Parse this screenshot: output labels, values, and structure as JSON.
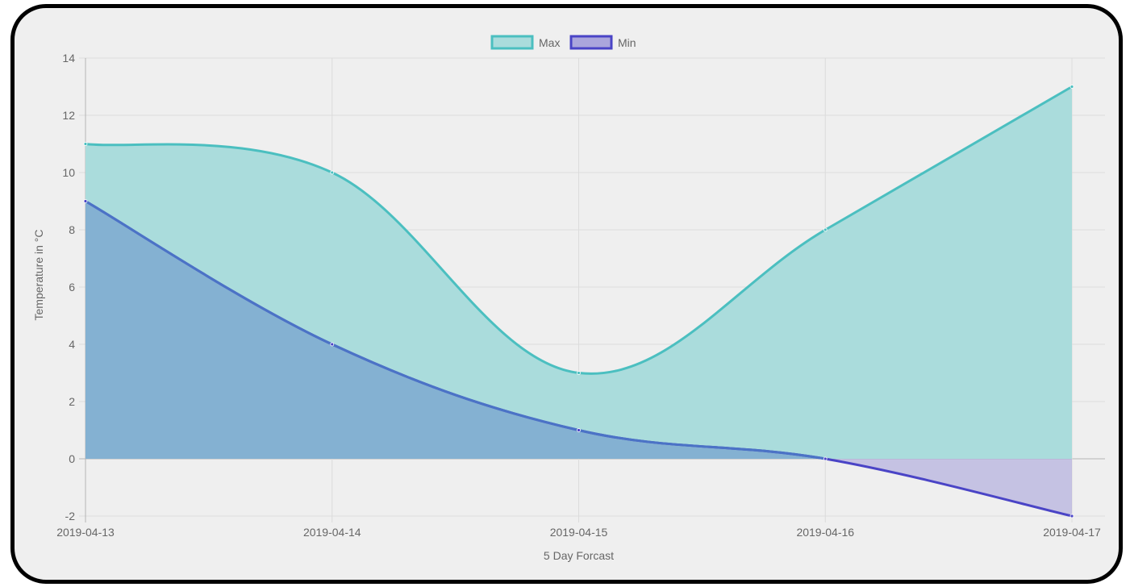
{
  "chart_data": {
    "type": "area",
    "categories": [
      "2019-04-13",
      "2019-04-14",
      "2019-04-15",
      "2019-04-16",
      "2019-04-17"
    ],
    "series": [
      {
        "name": "Max",
        "values": [
          11,
          10,
          3,
          8,
          13
        ],
        "border_color": "#4bbfc0",
        "fill_color": "#aadcdc"
      },
      {
        "name": "Min",
        "values": [
          9,
          4,
          1,
          0,
          -2
        ],
        "border_color": "#4a44c6",
        "fill_color": "#aba6dc",
        "overlap_fill_color": "#84b1d2",
        "overlap_border_color": "#4b73c6"
      }
    ],
    "xlabel": "5 Day Forcast",
    "ylabel": "Temperature in °C",
    "ylim": [
      -2,
      14
    ],
    "yticks": [
      "14",
      "12",
      "10",
      "8",
      "6",
      "4",
      "2",
      "0",
      "-2"
    ],
    "grid": true,
    "legend_position": "top"
  }
}
